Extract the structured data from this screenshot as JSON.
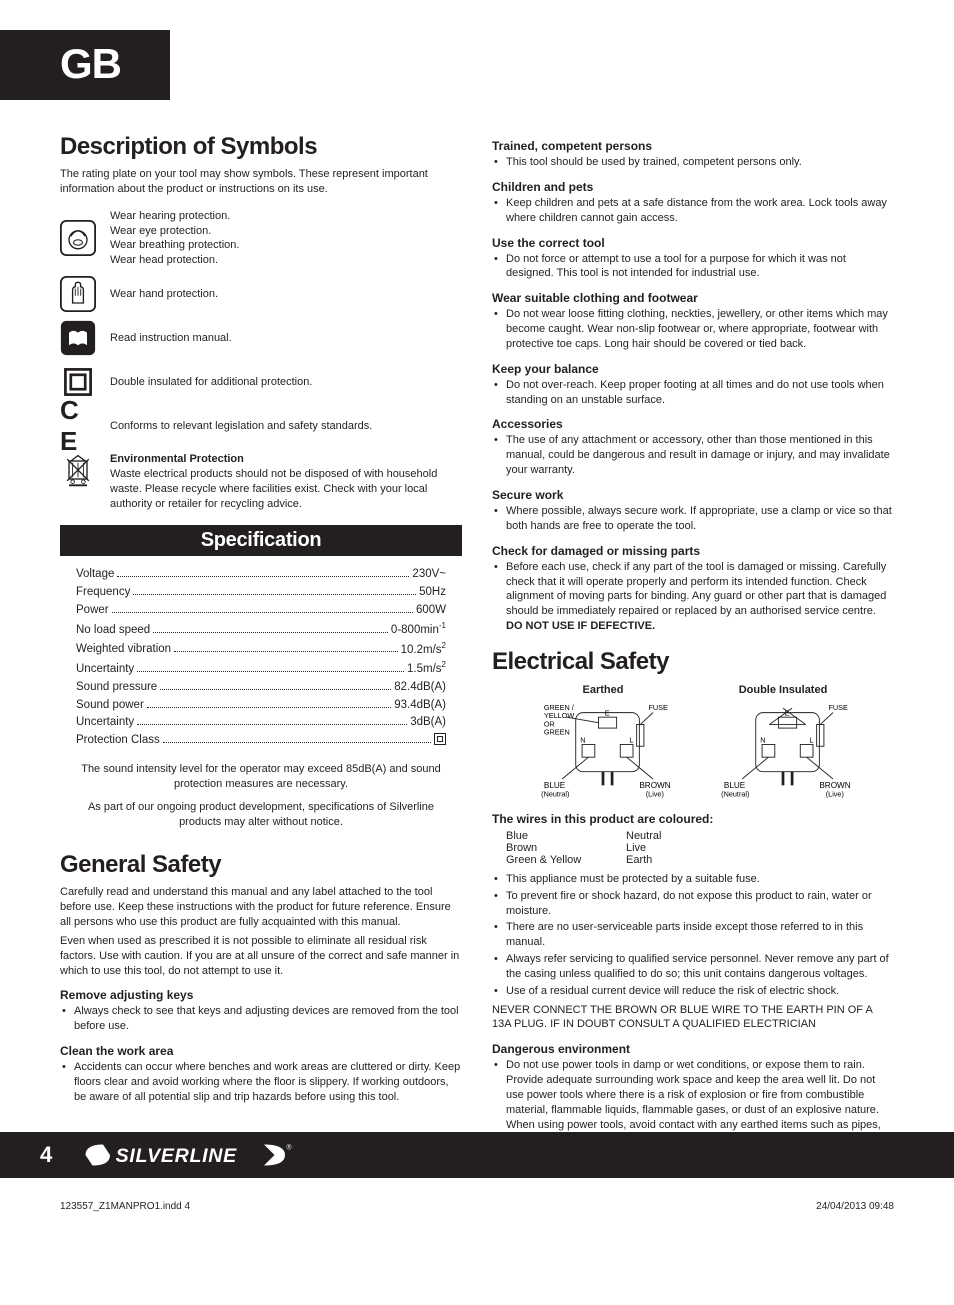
{
  "colors": {
    "text": "#231f20",
    "bg": "#ffffff",
    "badge_bg": "#231f20",
    "badge_fg": "#ffffff"
  },
  "badge": "GB",
  "page_number": "4",
  "indd": {
    "file": "123557_Z1MANPRO1.indd   4",
    "stamp": "24/04/2013   09:48"
  },
  "left": {
    "desc_title": "Description of Symbols",
    "desc_intro": "The rating plate on your tool may show symbols. These represent important information about the product or instructions on its use.",
    "symbols": {
      "ppe_lines": [
        "Wear hearing protection.",
        "Wear eye protection.",
        "Wear breathing protection.",
        "Wear head protection."
      ],
      "hand": "Wear hand protection.",
      "manual": "Read instruction manual.",
      "double_ins": "Double insulated for additional protection.",
      "ce": "Conforms to relevant legislation and safety standards.",
      "env_title": "Environmental Protection",
      "env_body": "Waste electrical products should not be disposed of with household waste. Please recycle where facilities exist. Check with your local authority or retailer for recycling advice."
    },
    "spec_title": "Specification",
    "specs": [
      {
        "label": "Voltage",
        "value": "230V~"
      },
      {
        "label": "Frequency",
        "value": "50Hz"
      },
      {
        "label": "Power",
        "value": "600W"
      },
      {
        "label": "No load speed",
        "value": "0-800min",
        "sup": "-1"
      },
      {
        "label": "Weighted vibration",
        "value": "10.2m/s",
        "sup": "2"
      },
      {
        "label": "Uncertainty",
        "value": "1.5m/s",
        "sup": "2"
      },
      {
        "label": "Sound pressure",
        "value": "82.4dB(A)"
      },
      {
        "label": "Sound power",
        "value": "93.4dB(A)"
      },
      {
        "label": "Uncertainty",
        "value": "3dB(A)"
      },
      {
        "label": "Protection Class",
        "value": "",
        "icon": "double-square"
      }
    ],
    "spec_note1": "The sound intensity level for the operator may exceed 85dB(A) and sound protection measures are necessary.",
    "spec_note2": "As part of our ongoing product development, specifications of Silverline products may alter without notice.",
    "gs_title": "General Safety",
    "gs_p1": "Carefully read and understand this manual and any label attached to the tool before use. Keep these instructions with the product for future reference. Ensure all persons who use this product are fully acquainted with this manual.",
    "gs_p2": "Even when used as prescribed it is not possible to eliminate all residual risk factors. Use with caution. If you are at all unsure of the correct and safe manner in which to use this tool, do not attempt to use it.",
    "gs_items": [
      {
        "h": "Remove adjusting keys",
        "b": "Always check to see that keys and adjusting devices are removed from the tool before use."
      },
      {
        "h": "Clean the work area",
        "b": "Accidents can occur where benches and work areas are cluttered or dirty. Keep floors clear and avoid working where the floor is slippery. If working outdoors, be aware of all potential slip and trip hazards before using this tool."
      }
    ]
  },
  "right": {
    "items": [
      {
        "h": "Trained, competent persons",
        "b": "This tool should be used by trained, competent persons only."
      },
      {
        "h": "Children and pets",
        "b": "Keep children and pets at a safe distance from the work area. Lock tools away where children cannot gain access."
      },
      {
        "h": "Use the correct tool",
        "b": "Do not force or attempt to use a tool for a purpose for which it was not designed. This tool is not intended for industrial use."
      },
      {
        "h": "Wear suitable clothing and footwear",
        "b": "Do not wear loose fitting clothing, neckties, jewellery, or other items which may become caught. Wear non-slip footwear or, where appropriate, footwear with protective toe caps. Long hair should be covered or tied back."
      },
      {
        "h": "Keep your balance",
        "b": "Do not over-reach. Keep proper footing at all times and do not use tools when standing on an unstable surface."
      },
      {
        "h": "Accessories",
        "b": "The use of any attachment or accessory, other than those mentioned in this manual, could be dangerous and result in damage or injury, and may invalidate your warranty."
      },
      {
        "h": "Secure work",
        "b": "Where possible, always secure work. If appropriate, use a clamp or vice so that both hands are free to operate the tool."
      },
      {
        "h": "Check for damaged or missing parts",
        "b_html": "Before each use, check if any part of the tool is damaged or missing. Carefully check that it will operate properly and perform its intended function. Check alignment of moving parts for binding. Any guard or other part that is damaged should be immediately repaired or replaced by an authorised service centre. <b>DO NOT USE IF DEFECTIVE.</b>"
      }
    ],
    "es_title": "Electrical Safety",
    "plug_labels": {
      "earthed": "Earthed",
      "double": "Double Insulated",
      "fuse": "FUSE",
      "gy": "GREEN / YELLOW OR GREEN",
      "blue": "BLUE (Neutral)",
      "brown": "BROWN (Live)",
      "e": "E",
      "l": "L",
      "n": "N"
    },
    "wires_title": "The wires in this product are coloured:",
    "wires": [
      {
        "c": "Blue",
        "n": "Neutral"
      },
      {
        "c": "Brown",
        "n": "Live"
      },
      {
        "c": "Green & Yellow",
        "n": "Earth"
      }
    ],
    "es_bullets": [
      "This appliance must be protected by a suitable fuse.",
      "To prevent fire or shock hazard, do not expose this product to rain, water or moisture.",
      "There are no user-serviceable parts inside except those referred to in this manual.",
      "Always refer servicing to qualified service personnel. Never remove any part of the casing unless qualified to do so; this unit contains dangerous voltages.",
      "Use of a residual current device will reduce the risk of electric shock."
    ],
    "es_caps": "NEVER CONNECT THE BROWN OR BLUE WIRE TO THE EARTH PIN OF A 13A PLUG. IF IN DOUBT CONSULT A QUALIFIED ELECTRICIAN",
    "danger_h": "Dangerous environment",
    "danger_b": "Do not use power tools in damp or wet conditions, or expose them to rain. Provide adequate surrounding work space and keep the area well lit. Do not use power tools where there is a risk of explosion or fire from combustible material, flammable liquids, flammable gases, or dust of an explosive nature. When using power tools, avoid contact with any earthed items such as pipes, radiators, cookers, refrigerators, metal baths and taps."
  },
  "brand": "SILVERLINE"
}
